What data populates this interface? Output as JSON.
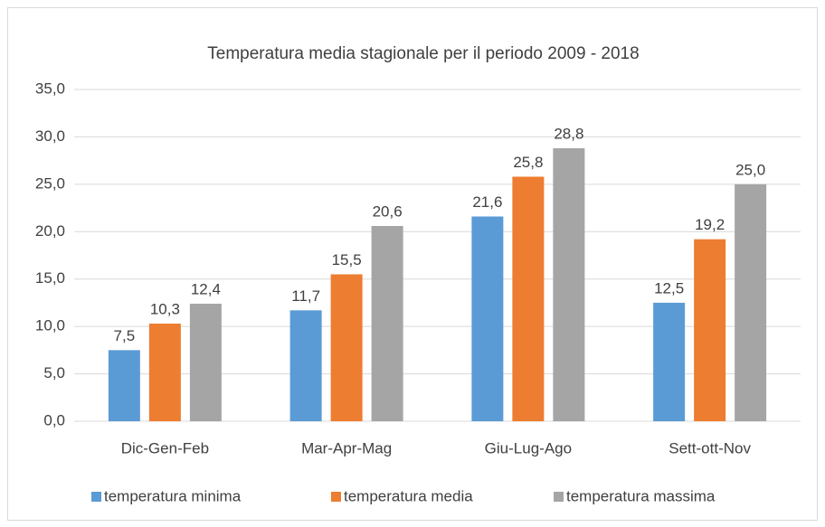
{
  "chart_data": {
    "type": "bar",
    "title": "Temperatura media stagionale per il periodo 2009 - 2018",
    "categories": [
      "Dic-Gen-Feb",
      "Mar-Apr-Mag",
      "Giu-Lug-Ago",
      "Sett-ott-Nov"
    ],
    "series": [
      {
        "name": "temperatura minima",
        "color": "#5b9bd5",
        "values": [
          7.5,
          11.7,
          21.6,
          12.5
        ],
        "value_labels": [
          "7,5",
          "11,7",
          "21,6",
          "12,5"
        ]
      },
      {
        "name": "temperatura media",
        "color": "#ed7d31",
        "values": [
          10.3,
          15.5,
          25.8,
          19.2
        ],
        "value_labels": [
          "10,3",
          "15,5",
          "25,8",
          "19,2"
        ]
      },
      {
        "name": "temperatura massima",
        "color": "#a5a5a5",
        "values": [
          12.4,
          20.6,
          28.8,
          25.0
        ],
        "value_labels": [
          "12,4",
          "20,6",
          "28,8",
          "25,0"
        ]
      }
    ],
    "ylim": [
      0,
      35
    ],
    "yticks": [
      {
        "value": 0,
        "label": "0,0"
      },
      {
        "value": 5,
        "label": "5,0"
      },
      {
        "value": 10,
        "label": "10,0"
      },
      {
        "value": 15,
        "label": "15,0"
      },
      {
        "value": 20,
        "label": "20,0"
      },
      {
        "value": 25,
        "label": "25,0"
      },
      {
        "value": 30,
        "label": "30,0"
      },
      {
        "value": 35,
        "label": "35,0"
      }
    ],
    "grid": true,
    "legend": "bottom"
  }
}
